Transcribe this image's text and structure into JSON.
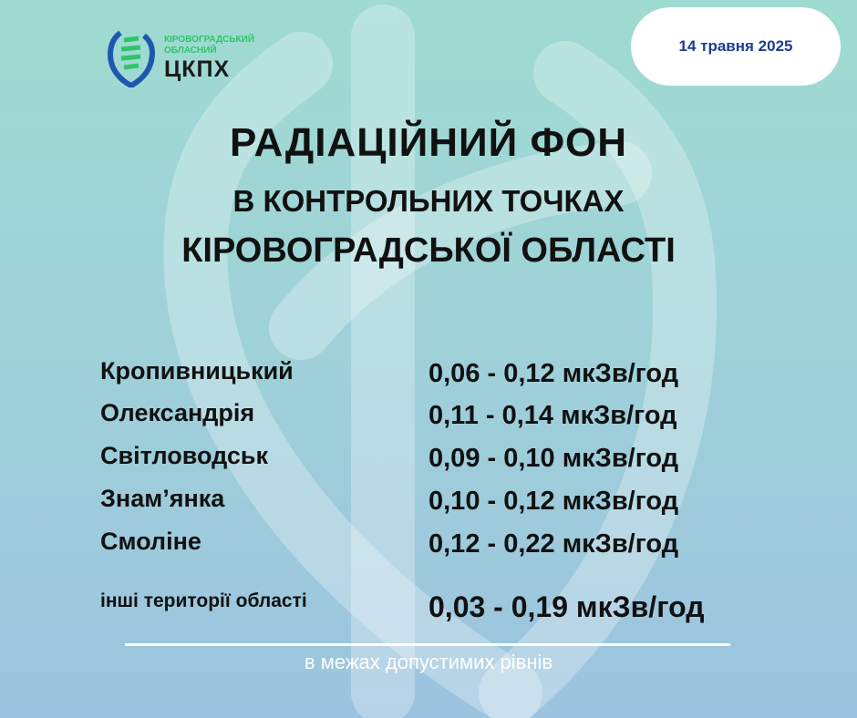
{
  "logo": {
    "line1": "КІРОВОГРАДСЬКИЙ",
    "line2": "ОБЛАСНИЙ",
    "name": "ЦКПХ"
  },
  "date": "14 травня 2025",
  "title": {
    "line1": "РАДІАЦІЙНИЙ ФОН",
    "line2": "В КОНТРОЛЬНИХ ТОЧКАХ",
    "line3": "КІРОВОГРАДСЬКОЇ ОБЛАСТІ"
  },
  "readings": [
    {
      "place": "Кропивницький",
      "value": "0,06 - 0,12 мкЗв/год"
    },
    {
      "place": "Олександрія",
      "value": "0,11 - 0,14 мкЗв/год"
    },
    {
      "place": "Світловодськ",
      "value": "0,09 - 0,10 мкЗв/год"
    },
    {
      "place": "Знам’янка",
      "value": "0,10 - 0,12 мкЗв/год"
    },
    {
      "place": "Смоліне",
      "value": "0,12 - 0,22 мкЗв/год"
    }
  ],
  "other": {
    "place": "інші території області",
    "value": "0,03 - 0,19 мкЗв/год"
  },
  "footer": "в межах допустимих рівнів",
  "colors": {
    "date_text": "#1d3d8f",
    "logo_green": "#2fc46a",
    "logo_blue": "#1f57b0"
  }
}
